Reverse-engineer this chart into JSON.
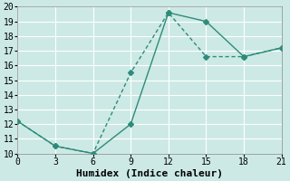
{
  "line1_x": [
    0,
    3,
    6,
    9,
    12,
    15,
    18,
    21
  ],
  "line1_y": [
    12.2,
    10.5,
    10.0,
    12.0,
    19.6,
    19.0,
    16.6,
    17.2
  ],
  "line2_x": [
    0,
    3,
    6,
    9,
    12,
    15,
    18,
    21
  ],
  "line2_y": [
    12.2,
    10.5,
    10.0,
    15.5,
    19.6,
    16.6,
    16.6,
    17.2
  ],
  "line_color": "#2e8b7a",
  "xlabel": "Humidex (Indice chaleur)",
  "xlim": [
    0,
    21
  ],
  "ylim": [
    10,
    20
  ],
  "xticks": [
    0,
    3,
    6,
    9,
    12,
    15,
    18,
    21
  ],
  "yticks": [
    10,
    11,
    12,
    13,
    14,
    15,
    16,
    17,
    18,
    19,
    20
  ],
  "bg_color": "#cce9e5",
  "grid_color": "#ffffff",
  "marker": "D",
  "marker_size": 3,
  "font_family": "monospace",
  "tick_fontsize": 7,
  "xlabel_fontsize": 8
}
